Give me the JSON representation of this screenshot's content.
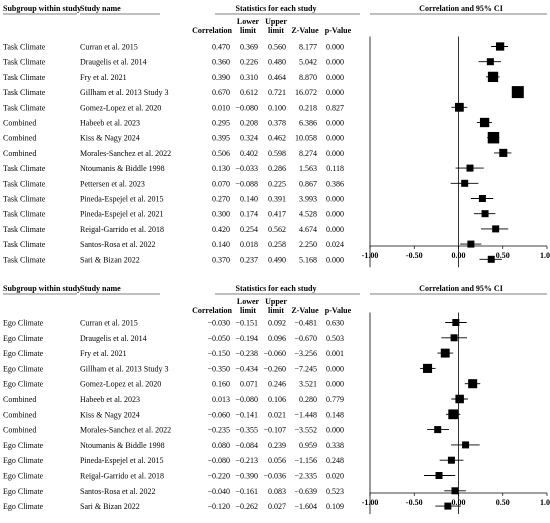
{
  "chart_data": [
    {
      "type": "forest",
      "headers": {
        "subgroup": "Subgroup within study",
        "study": "Study name",
        "stats_group": "Statistics for each study",
        "plot_group": "Correlation and 95% CI",
        "cols": [
          "Correlation",
          "Lower limit",
          "Upper limit",
          "Z-Value",
          "p-Value"
        ]
      },
      "xlim": [
        -1.0,
        1.0
      ],
      "xticks": [
        "-1.00",
        "-0.50",
        "0.00",
        "0.50",
        "1.00"
      ],
      "rows": [
        {
          "subgroup": "Task Climate",
          "study": "Curran et al. 2015",
          "correlation": "0.470",
          "lower": "0.369",
          "upper": "0.560",
          "z": "8.177",
          "p": "0.000"
        },
        {
          "subgroup": "Task Climate",
          "study": "Draugelis et al. 2014",
          "correlation": "0.360",
          "lower": "0.226",
          "upper": "0.480",
          "z": "5.042",
          "p": "0.000"
        },
        {
          "subgroup": "Task Climate",
          "study": "Fry et al. 2021",
          "correlation": "0.390",
          "lower": "0.310",
          "upper": "0.464",
          "z": "8.870",
          "p": "0.000"
        },
        {
          "subgroup": "Task Climate",
          "study": "Gillham et al. 2013 Study 3",
          "correlation": "0.670",
          "lower": "0.612",
          "upper": "0.721",
          "z": "16.072",
          "p": "0.000"
        },
        {
          "subgroup": "Task Climate",
          "study": "Gomez-Lopez et al. 2020",
          "correlation": "0.010",
          "lower": "−0.080",
          "upper": "0.100",
          "z": "0.218",
          "p": "0.827"
        },
        {
          "subgroup": "Combined",
          "study": "Habeeb et al. 2023",
          "correlation": "0.295",
          "lower": "0.208",
          "upper": "0.378",
          "z": "6.386",
          "p": "0.000"
        },
        {
          "subgroup": "Combined",
          "study": "Kiss & Nagy 2024",
          "correlation": "0.395",
          "lower": "0.324",
          "upper": "0.462",
          "z": "10.058",
          "p": "0.000"
        },
        {
          "subgroup": "Combined",
          "study": "Morales-Sanchez et al. 2022",
          "correlation": "0.506",
          "lower": "0.402",
          "upper": "0.598",
          "z": "8.274",
          "p": "0.000"
        },
        {
          "subgroup": "Task Climate",
          "study": "Ntoumanis & Biddle 1998",
          "correlation": "0.130",
          "lower": "−0.033",
          "upper": "0.286",
          "z": "1.563",
          "p": "0.118"
        },
        {
          "subgroup": "Task Climate",
          "study": "Pettersen et al. 2023",
          "correlation": "0.070",
          "lower": "−0.088",
          "upper": "0.225",
          "z": "0.867",
          "p": "0.386"
        },
        {
          "subgroup": "Task Climate",
          "study": "Pineda-Espejel et al. 2015",
          "correlation": "0.270",
          "lower": "0.140",
          "upper": "0.391",
          "z": "3.993",
          "p": "0.000"
        },
        {
          "subgroup": "Task Climate",
          "study": "Pineda-Espejel et al. 2021",
          "correlation": "0.300",
          "lower": "0.174",
          "upper": "0.417",
          "z": "4.528",
          "p": "0.000"
        },
        {
          "subgroup": "Task Climate",
          "study": "Reigal-Garrido et al. 2018",
          "correlation": "0.420",
          "lower": "0.254",
          "upper": "0.562",
          "z": "4.674",
          "p": "0.000"
        },
        {
          "subgroup": "Task Climate",
          "study": "Santos-Rosa et al. 2022",
          "correlation": "0.140",
          "lower": "0.018",
          "upper": "0.258",
          "z": "2.250",
          "p": "0.024"
        },
        {
          "subgroup": "Task Climate",
          "study": "Sari & Bizan 2022",
          "correlation": "0.370",
          "lower": "0.237",
          "upper": "0.490",
          "z": "5.168",
          "p": "0.000"
        }
      ]
    },
    {
      "type": "forest",
      "headers": {
        "subgroup": "Subgroup within study",
        "study": "Study name",
        "stats_group": "Statistics for each study",
        "plot_group": "Correlation and 95% CI",
        "cols": [
          "Correlation",
          "Lower limit",
          "Upper limit",
          "Z-Value",
          "p-Value"
        ]
      },
      "xlim": [
        -1.0,
        1.0
      ],
      "xticks": [
        "-1.00",
        "-0.50",
        "0.00",
        "0.50",
        "1.00"
      ],
      "rows": [
        {
          "subgroup": "Ego Climate",
          "study": "Curran et al. 2015",
          "correlation": "−0.030",
          "lower": "−0.151",
          "upper": "0.092",
          "z": "−0.481",
          "p": "0.630"
        },
        {
          "subgroup": "Ego Climate",
          "study": "Draugelis et al. 2014",
          "correlation": "−0.050",
          "lower": "−0.194",
          "upper": "0.096",
          "z": "−0.670",
          "p": "0.503"
        },
        {
          "subgroup": "Ego Climate",
          "study": "Fry et al. 2021",
          "correlation": "−0.150",
          "lower": "−0.238",
          "upper": "−0.060",
          "z": "−3.256",
          "p": "0.001"
        },
        {
          "subgroup": "Ego Climate",
          "study": "Gillham et al. 2013 Study 3",
          "correlation": "−0.350",
          "lower": "−0.434",
          "upper": "−0.260",
          "z": "−7.245",
          "p": "0.000"
        },
        {
          "subgroup": "Ego Climate",
          "study": "Gomez-Lopez et al. 2020",
          "correlation": "0.160",
          "lower": "0.071",
          "upper": "0.246",
          "z": "3.521",
          "p": "0.000"
        },
        {
          "subgroup": "Combined",
          "study": "Habeeb et al. 2023",
          "correlation": "0.013",
          "lower": "−0.080",
          "upper": "0.106",
          "z": "0.280",
          "p": "0.779"
        },
        {
          "subgroup": "Combined",
          "study": "Kiss & Nagy 2024",
          "correlation": "−0.060",
          "lower": "−0.141",
          "upper": "0.021",
          "z": "−1.448",
          "p": "0.148"
        },
        {
          "subgroup": "Combined",
          "study": "Morales-Sanchez et al. 2022",
          "correlation": "−0.235",
          "lower": "−0.355",
          "upper": "−0.107",
          "z": "−3.552",
          "p": "0.000"
        },
        {
          "subgroup": "Ego Climate",
          "study": "Ntoumanis & Biddle 1998",
          "correlation": "0.080",
          "lower": "−0.084",
          "upper": "0.239",
          "z": "0.959",
          "p": "0.338"
        },
        {
          "subgroup": "Ego Climate",
          "study": "Pineda-Espejel et al. 2015",
          "correlation": "−0.080",
          "lower": "−0.213",
          "upper": "0.056",
          "z": "−1.156",
          "p": "0.248"
        },
        {
          "subgroup": "Ego Climate",
          "study": "Reigal-Garrido et al. 2018",
          "correlation": "−0.220",
          "lower": "−0.390",
          "upper": "−0.036",
          "z": "−2.335",
          "p": "0.020"
        },
        {
          "subgroup": "Ego Climate",
          "study": "Santos-Rosa et al. 2022",
          "correlation": "−0.040",
          "lower": "−0.161",
          "upper": "0.083",
          "z": "−0.639",
          "p": "0.523"
        },
        {
          "subgroup": "Ego Climate",
          "study": "Sari & Bizan 2022",
          "correlation": "−0.120",
          "lower": "−0.262",
          "upper": "0.027",
          "z": "−1.604",
          "p": "0.109"
        }
      ]
    }
  ]
}
